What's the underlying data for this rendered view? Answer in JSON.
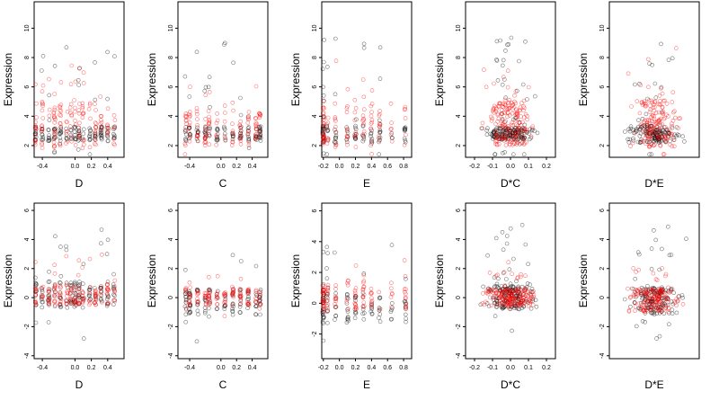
{
  "colors": {
    "series_black": "#000000",
    "series_red": "#ff0000",
    "axis": "#000000",
    "background": "#ffffff"
  },
  "chart_data": [
    {
      "type": "scatter",
      "xlabel": "D",
      "ylabel": "Expression",
      "xlim": [
        -0.5,
        0.6
      ],
      "ylim": [
        1.2,
        11.8
      ],
      "xticks": [
        -0.4,
        0.0,
        0.2,
        0.4
      ],
      "xtick_labels": [
        "-0.4",
        "0.0",
        "0.2",
        "0.4"
      ],
      "yticks": [
        2,
        4,
        6,
        8,
        10
      ],
      "ytick_labels": [
        "2",
        "4",
        "6",
        "8",
        "10"
      ],
      "x_groups": [
        -0.48,
        -0.4,
        -0.32,
        -0.25,
        -0.18,
        -0.1,
        -0.05,
        0.0,
        0.05,
        0.1,
        0.18,
        0.25,
        0.32,
        0.4,
        0.48
      ],
      "series": [
        {
          "color": "#000000",
          "baseline": 2.8,
          "spread": 0.5,
          "tail": 6.5,
          "n": 150
        },
        {
          "color": "#ff0000",
          "baseline": 3.4,
          "spread": 1.6,
          "tail": 4.0,
          "n": 150
        }
      ]
    },
    {
      "type": "scatter",
      "xlabel": "C",
      "ylabel": "Expression",
      "xlim": [
        -0.55,
        0.6
      ],
      "ylim": [
        1.2,
        11.8
      ],
      "xticks": [
        -0.4,
        0.0,
        0.2,
        0.4
      ],
      "xtick_labels": [
        "-0.4",
        "0.0",
        "0.2",
        "0.4"
      ],
      "yticks": [
        2,
        4,
        6,
        8,
        10
      ],
      "ytick_labels": [
        "2",
        "4",
        "6",
        "8",
        "10"
      ],
      "x_groups": [
        -0.45,
        -0.4,
        -0.3,
        -0.2,
        -0.15,
        -0.05,
        0.05,
        0.15,
        0.25,
        0.35,
        0.45,
        0.5
      ],
      "series": [
        {
          "color": "#000000",
          "baseline": 2.8,
          "spread": 0.5,
          "tail": 6.0,
          "n": 120
        },
        {
          "color": "#ff0000",
          "baseline": 3.2,
          "spread": 1.2,
          "tail": 3.0,
          "n": 120
        }
      ]
    },
    {
      "type": "scatter",
      "xlabel": "E",
      "ylabel": "Expression",
      "xlim": [
        -0.22,
        0.9
      ],
      "ylim": [
        1.2,
        11.8
      ],
      "xticks": [
        -0.2,
        0.0,
        0.2,
        0.4,
        0.6,
        0.8
      ],
      "xtick_labels": [
        "-0.2",
        "0.0",
        "0.2",
        "0.4",
        "0.6",
        "0.8"
      ],
      "yticks": [
        2,
        4,
        6,
        8,
        10
      ],
      "ytick_labels": [
        "2",
        "4",
        "6",
        "8",
        "10"
      ],
      "x_groups": [
        -0.2,
        -0.2,
        -0.2,
        -0.15,
        -0.05,
        0.1,
        0.2,
        0.3,
        0.4,
        0.5,
        0.65,
        0.82
      ],
      "series": [
        {
          "color": "#000000",
          "baseline": 2.8,
          "spread": 0.6,
          "tail": 7.0,
          "n": 110
        },
        {
          "color": "#ff0000",
          "baseline": 3.3,
          "spread": 1.4,
          "tail": 4.0,
          "n": 110
        }
      ]
    },
    {
      "type": "scatter",
      "xlabel": "D*C",
      "ylabel": "Expression",
      "xlim": [
        -0.25,
        0.25
      ],
      "ylim": [
        1.2,
        11.8
      ],
      "xticks": [
        -0.2,
        -0.1,
        0.0,
        0.1,
        0.2
      ],
      "xtick_labels": [
        "-0.2",
        "-0.1",
        "0.0",
        "0.1",
        "0.2"
      ],
      "yticks": [
        2,
        4,
        6,
        8,
        10
      ],
      "ytick_labels": [
        "2",
        "4",
        "6",
        "8",
        "10"
      ],
      "x_groups": [],
      "series": [
        {
          "color": "#000000",
          "baseline": 2.8,
          "spread": 0.4,
          "tail": 6.5,
          "n": 180
        },
        {
          "color": "#ff0000",
          "baseline": 3.5,
          "spread": 1.5,
          "tail": 4.0,
          "n": 180
        }
      ]
    },
    {
      "type": "scatter",
      "xlabel": "D*E",
      "ylabel": "Expression",
      "xlim": [
        -0.28,
        0.38
      ],
      "ylim": [
        1.2,
        11.8
      ],
      "xticks": [],
      "xtick_labels": [],
      "yticks": [
        2,
        4,
        6,
        8,
        10
      ],
      "ytick_labels": [
        "2",
        "4",
        "6",
        "8",
        "10"
      ],
      "x_groups": [],
      "series": [
        {
          "color": "#000000",
          "baseline": 2.8,
          "spread": 0.6,
          "tail": 7.0,
          "n": 160
        },
        {
          "color": "#ff0000",
          "baseline": 3.5,
          "spread": 1.6,
          "tail": 4.5,
          "n": 160
        }
      ]
    },
    {
      "type": "scatter",
      "xlabel": "D",
      "ylabel": "Expression",
      "xlim": [
        -0.5,
        0.6
      ],
      "ylim": [
        -4.2,
        6.5
      ],
      "xticks": [
        -0.4,
        0.0,
        0.2,
        0.4
      ],
      "xtick_labels": [
        "-0.4",
        "0.0",
        "0.2",
        "0.4"
      ],
      "yticks": [
        -4,
        -2,
        0,
        2,
        4,
        6
      ],
      "ytick_labels": [
        "-4",
        "-2",
        "0",
        "2",
        "4",
        "6"
      ],
      "x_groups": [
        -0.48,
        -0.4,
        -0.32,
        -0.25,
        -0.18,
        -0.1,
        -0.05,
        0.0,
        0.05,
        0.1,
        0.18,
        0.25,
        0.32,
        0.4,
        0.48
      ],
      "series": [
        {
          "color": "#000000",
          "baseline": 0.2,
          "spread": 0.9,
          "tail": 4.5,
          "n": 150
        },
        {
          "color": "#ff0000",
          "baseline": 0.2,
          "spread": 0.7,
          "tail": 2.5,
          "n": 150
        }
      ]
    },
    {
      "type": "scatter",
      "xlabel": "C",
      "ylabel": "Expression",
      "xlim": [
        -0.55,
        0.6
      ],
      "ylim": [
        -4.2,
        6.5
      ],
      "xticks": [
        -0.4,
        0.0,
        0.2,
        0.4
      ],
      "xtick_labels": [
        "-0.4",
        "0.0",
        "0.2",
        "0.4"
      ],
      "yticks": [
        -4,
        -2,
        0,
        2,
        4,
        6
      ],
      "ytick_labels": [
        "-4",
        "-2",
        "0",
        "2",
        "4",
        "6"
      ],
      "x_groups": [
        -0.45,
        -0.4,
        -0.3,
        -0.2,
        -0.15,
        -0.05,
        0.05,
        0.15,
        0.25,
        0.35,
        0.45,
        0.5
      ],
      "series": [
        {
          "color": "#000000",
          "baseline": -0.3,
          "spread": 0.9,
          "tail": 5.0,
          "n": 120
        },
        {
          "color": "#ff0000",
          "baseline": 0.0,
          "spread": 0.6,
          "tail": 2.0,
          "n": 120
        }
      ]
    },
    {
      "type": "scatter",
      "xlabel": "E",
      "ylabel": "Expression",
      "xlim": [
        -0.22,
        0.9
      ],
      "ylim": [
        -3.6,
        6.5
      ],
      "xticks": [
        -0.2,
        0.0,
        0.2,
        0.4,
        0.6,
        0.8
      ],
      "xtick_labels": [
        "-0.2",
        "0.0",
        "0.2",
        "0.4",
        "0.6",
        "0.8"
      ],
      "yticks": [
        -2,
        0,
        2,
        4,
        6
      ],
      "ytick_labels": [
        "-2",
        "0",
        "2",
        "4",
        "6"
      ],
      "x_groups": [
        -0.2,
        -0.2,
        -0.2,
        -0.15,
        -0.05,
        0.1,
        0.2,
        0.3,
        0.4,
        0.5,
        0.65,
        0.82
      ],
      "series": [
        {
          "color": "#000000",
          "baseline": -0.3,
          "spread": 1.0,
          "tail": 5.0,
          "n": 110
        },
        {
          "color": "#ff0000",
          "baseline": 0.3,
          "spread": 0.9,
          "tail": 2.0,
          "n": 110
        }
      ]
    },
    {
      "type": "scatter",
      "xlabel": "D*C",
      "ylabel": "Expression",
      "xlim": [
        -0.25,
        0.25
      ],
      "ylim": [
        -4.2,
        6.5
      ],
      "xticks": [
        -0.2,
        -0.1,
        0.0,
        0.1,
        0.2
      ],
      "xtick_labels": [
        "-0.2",
        "-0.1",
        "0.0",
        "0.1",
        "0.2"
      ],
      "yticks": [
        -4,
        -2,
        0,
        2,
        4,
        6
      ],
      "ytick_labels": [
        "-4",
        "-2",
        "0",
        "2",
        "4",
        "6"
      ],
      "x_groups": [],
      "series": [
        {
          "color": "#000000",
          "baseline": 0.0,
          "spread": 0.8,
          "tail": 4.5,
          "n": 180
        },
        {
          "color": "#ff0000",
          "baseline": 0.0,
          "spread": 0.6,
          "tail": 2.0,
          "n": 180
        }
      ]
    },
    {
      "type": "scatter",
      "xlabel": "D*E",
      "ylabel": "Expression",
      "xlim": [
        -0.28,
        0.38
      ],
      "ylim": [
        -4.2,
        6.5
      ],
      "xticks": [],
      "xtick_labels": [],
      "yticks": [
        -4,
        -2,
        0,
        2,
        4,
        6
      ],
      "ytick_labels": [
        "-4",
        "-2",
        "0",
        "2",
        "4",
        "6"
      ],
      "x_groups": [],
      "series": [
        {
          "color": "#000000",
          "baseline": -0.2,
          "spread": 0.9,
          "tail": 5.0,
          "n": 160
        },
        {
          "color": "#ff0000",
          "baseline": -0.2,
          "spread": 0.8,
          "tail": 2.0,
          "n": 160
        }
      ]
    }
  ]
}
